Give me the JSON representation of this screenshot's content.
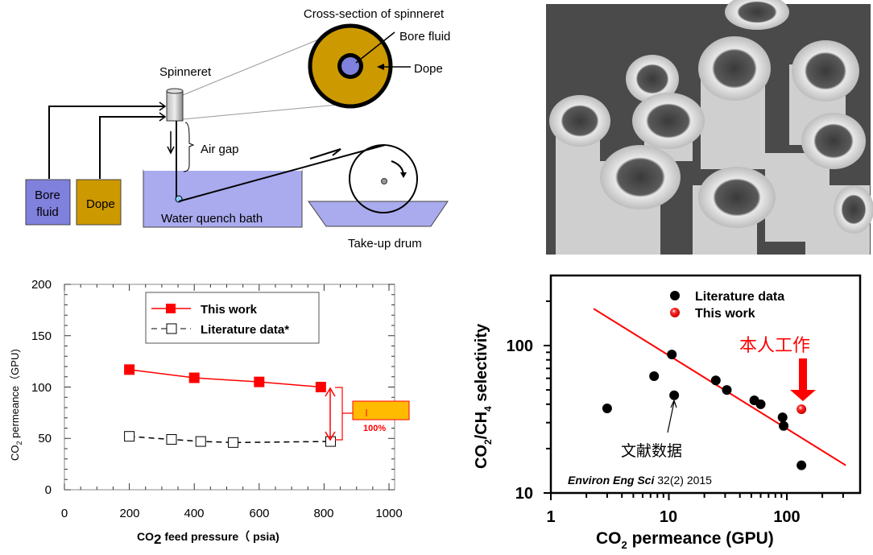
{
  "diagram": {
    "cross_section_title": "Cross-section of spinneret",
    "bore_fluid_label": "Bore fluid",
    "dope_label": "Dope",
    "spinneret_label": "Spinneret",
    "air_gap_label": "Air gap",
    "box_bore_line1": "Bore",
    "box_bore_line2": "fluid",
    "box_dope": "Dope",
    "bath_label": "Water quench bath",
    "drum_label": "Take-up drum",
    "colors": {
      "bore": "#8080dd",
      "dope": "#cc9900",
      "water": "#aaaaee"
    }
  },
  "chart_data": [
    {
      "type": "line",
      "title": "",
      "xlabel_main": "CO",
      "xlabel_sub": "2",
      "xlabel_rest": " feed pressure（ psia)",
      "ylabel_main": "CO",
      "ylabel_sub": "2",
      "ylabel_rest": " permeance（GPU)",
      "xlim": [
        0,
        1000
      ],
      "ylim": [
        0,
        200
      ],
      "xticks": [
        "0",
        "200",
        "400",
        "600",
        "800",
        "1000"
      ],
      "yticks": [
        "0",
        "50",
        "100",
        "150",
        "200"
      ],
      "legend_position": "top-center",
      "series": [
        {
          "name": "This work",
          "color": "#ff0000",
          "marker": "filled-square",
          "x": [
            200,
            400,
            600,
            790
          ],
          "y": [
            117,
            109,
            105,
            100
          ]
        },
        {
          "name": "Literature data*",
          "color": "#000000",
          "marker": "open-square",
          "dashed": true,
          "x": [
            200,
            330,
            420,
            520,
            820
          ],
          "y": [
            52,
            49,
            47,
            46,
            47
          ]
        }
      ],
      "annotation": "100%"
    },
    {
      "type": "scatter",
      "xscale": "log",
      "yscale": "log",
      "xlabel_main": "CO",
      "xlabel_sub": "2",
      "xlabel_rest": " permeance (GPU)",
      "ylabel_a": "CO",
      "ylabel_sub1": "2",
      "ylabel_b": "/CH",
      "ylabel_sub2": "4",
      "ylabel_c": " selectivity",
      "xlim": [
        1,
        400
      ],
      "ylim": [
        10,
        300
      ],
      "xticks": [
        "1",
        "10",
        "100"
      ],
      "yticks": [
        "10",
        "100"
      ],
      "legend_position": "top-right",
      "series": [
        {
          "name": "Literature data",
          "color": "#000000",
          "x": [
            3.0,
            7.5,
            10.6,
            11.1,
            25,
            31,
            53,
            60,
            92,
            94,
            133
          ],
          "y": [
            37.5,
            62,
            87,
            46,
            58,
            50,
            42.5,
            40,
            32.6,
            28.5,
            15.4
          ]
        },
        {
          "name": "This work",
          "color": "#ff0000",
          "x": [
            133
          ],
          "y": [
            37
          ]
        }
      ],
      "trend_line": {
        "x": [
          2.3,
          316
        ],
        "y": [
          178,
          15.4
        ],
        "color": "#ff0000"
      },
      "annotation_this_work": "本人工作",
      "annotation_literature": "文献数据",
      "citation_italic": "Environ Eng Sci",
      "citation_rest": " 32(2) 2015"
    }
  ]
}
